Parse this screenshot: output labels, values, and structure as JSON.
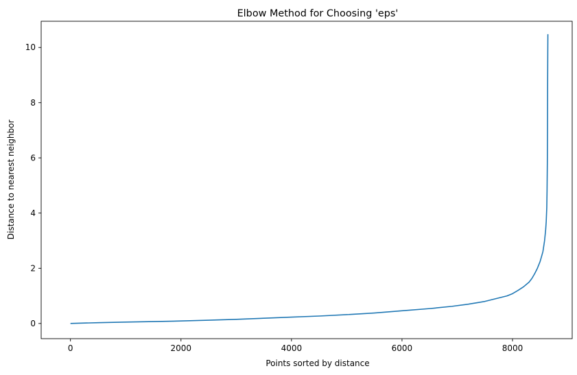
{
  "chart_data": {
    "type": "line",
    "title": "Elbow Method for Choosing 'eps'",
    "xlabel": "Points sorted by distance",
    "ylabel": "Distance to nearest neighbor",
    "xlim": [
      -530,
      9080
    ],
    "ylim": [
      -0.55,
      10.95
    ],
    "xticks": [
      0,
      2000,
      4000,
      6000,
      8000
    ],
    "yticks": [
      0,
      2,
      4,
      6,
      8,
      10
    ],
    "grid": false,
    "line_color": "#1f77b4",
    "series": [
      {
        "x": [
          0,
          500,
          1000,
          1500,
          2000,
          2500,
          3000,
          3500,
          4000,
          4500,
          5000,
          5500,
          6000,
          6500,
          6900,
          7200,
          7500,
          7700,
          7900,
          8000,
          8100,
          8200,
          8300,
          8350,
          8400,
          8450,
          8500,
          8550,
          8580,
          8600,
          8610,
          8620,
          8625,
          8630,
          8633,
          8635,
          8638,
          8640
        ],
        "y": [
          0.0,
          0.03,
          0.05,
          0.07,
          0.09,
          0.12,
          0.15,
          0.19,
          0.23,
          0.27,
          0.32,
          0.38,
          0.46,
          0.54,
          0.62,
          0.7,
          0.8,
          0.9,
          1.0,
          1.08,
          1.2,
          1.33,
          1.5,
          1.63,
          1.8,
          2.0,
          2.25,
          2.6,
          3.0,
          3.4,
          3.7,
          4.2,
          4.8,
          5.8,
          7.0,
          8.5,
          9.8,
          10.48
        ]
      }
    ]
  }
}
